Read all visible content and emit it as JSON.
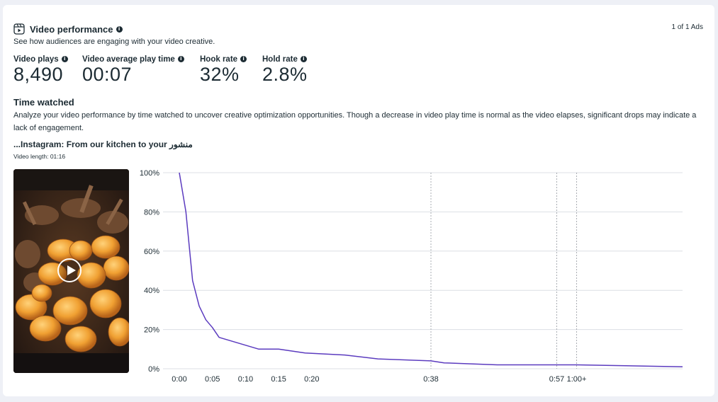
{
  "header": {
    "title": "Video performance",
    "subtitle": "See how audiences are engaging with your video creative.",
    "pager": "1 of 1 Ads"
  },
  "metrics": [
    {
      "label": "Video plays",
      "value": "8,490"
    },
    {
      "label": "Video average play time",
      "value": "00:07"
    },
    {
      "label": "Hook rate",
      "value": "32%"
    },
    {
      "label": "Hold rate",
      "value": "2.8%"
    }
  ],
  "time_watched": {
    "title": "Time watched",
    "description": "Analyze your video performance by time watched to uncover creative optimization opportunities. Though a decrease in video play time is normal as the video elapses, significant drops may indicate a lack of engagement."
  },
  "video": {
    "title": "منشور Instagram: From our kitchen to your...",
    "length": "Video length: 01:16"
  },
  "colors": {
    "line": "#5b3bbf",
    "grid": "#dcdfe4",
    "text": "#1c2b33"
  },
  "chart_data": {
    "type": "line",
    "x_ticks": [
      "0:00",
      "0:05",
      "0:10",
      "0:15",
      "0:20",
      "0:38",
      "0:57",
      "1:00+"
    ],
    "dashed_ticks": [
      "0:38",
      "0:57",
      "1:00+"
    ],
    "y_ticks": [
      "0%",
      "20%",
      "40%",
      "60%",
      "80%",
      "100%"
    ],
    "ylim": [
      0,
      100
    ],
    "xlim": [
      0,
      76
    ],
    "grid": true,
    "series": [
      {
        "x": [
          0,
          1,
          2,
          3,
          4,
          5,
          6,
          12,
          15,
          19,
          25,
          30,
          38,
          40,
          48,
          57,
          60,
          76
        ],
        "y": [
          100,
          80,
          45,
          32,
          25,
          21,
          16,
          10,
          10,
          8,
          7,
          5,
          4,
          3,
          2,
          2,
          2,
          1
        ]
      }
    ]
  }
}
